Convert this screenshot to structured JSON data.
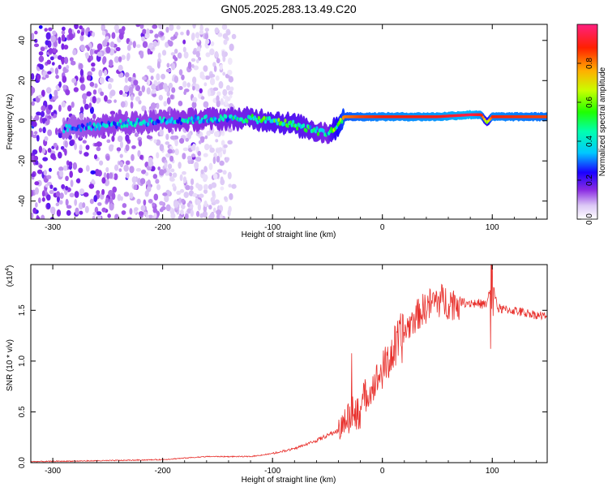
{
  "title": "GN05.2025.283.13.49.C20",
  "chart_data": [
    {
      "type": "heatmap",
      "panel": "spectrogram",
      "xlabel": "Height of straight line (km)",
      "ylabel": "Frequency (Hz)",
      "xlim": [
        -320,
        150
      ],
      "ylim": [
        -49,
        48
      ],
      "xticks": [
        -300,
        -200,
        -100,
        0,
        100
      ],
      "xtick_labels": [
        "-300",
        "-200",
        "-100",
        "0",
        "100"
      ],
      "yticks": [
        -40,
        -20,
        0,
        20,
        40
      ],
      "ytick_labels": [
        "-40",
        "-20",
        "0",
        "20",
        "40"
      ],
      "colorbar": {
        "label": "Normalized spectral amplitude",
        "range": [
          0,
          1
        ],
        "ticks": [
          0.0,
          0.2,
          0.4,
          0.6,
          0.8
        ],
        "tick_labels": [
          "0.0",
          "0.2",
          "0.4",
          "0.6",
          "0.8"
        ]
      },
      "ridge": {
        "description": "main signal ridge frequency vs height",
        "x": [
          -290,
          -250,
          -200,
          -150,
          -120,
          -100,
          -80,
          -60,
          -50,
          -45,
          -40,
          -35,
          -20,
          0,
          50,
          80,
          90,
          95,
          100,
          150
        ],
        "freq": [
          -4,
          -2,
          0,
          1,
          1,
          0,
          -2,
          -5,
          -6,
          -5,
          -2,
          2,
          2,
          2,
          2,
          3,
          3,
          -1,
          2,
          2
        ],
        "amplitude": [
          0.35,
          0.4,
          0.4,
          0.45,
          0.5,
          0.55,
          0.55,
          0.5,
          0.45,
          0.6,
          0.7,
          0.8,
          0.85,
          0.88,
          0.9,
          0.95,
          0.9,
          0.6,
          0.88,
          0.85
        ]
      },
      "noise_extent": {
        "x_from": -320,
        "x_to": -135,
        "amplitude": 0.2
      }
    },
    {
      "type": "line",
      "panel": "snr",
      "xlabel": "Height of straight line (km)",
      "ylabel": "SNR (10 * v/v)",
      "y_multiplier": "(x10",
      "y_multiplier_exponent": "4",
      "y_multiplier_close": ")",
      "xlim": [
        -320,
        150
      ],
      "ylim": [
        0,
        1.95
      ],
      "xticks": [
        -300,
        -200,
        -100,
        0,
        100
      ],
      "xtick_labels": [
        "-300",
        "-200",
        "-100",
        "0",
        "100"
      ],
      "yticks": [
        0.0,
        0.5,
        1.0,
        1.5
      ],
      "ytick_labels": [
        "0.0",
        "0.5",
        "1.0",
        "1.5"
      ],
      "color": "#e8302c",
      "series": [
        {
          "name": "SNR",
          "x": [
            -320,
            -250,
            -200,
            -160,
            -120,
            -100,
            -80,
            -60,
            -40,
            -30,
            -20,
            -10,
            0,
            10,
            20,
            30,
            40,
            50,
            60,
            80,
            95,
            100,
            105,
            120,
            150
          ],
          "values": [
            0.01,
            0.02,
            0.03,
            0.06,
            0.06,
            0.09,
            0.14,
            0.22,
            0.32,
            0.48,
            0.55,
            0.75,
            0.92,
            1.12,
            1.3,
            1.45,
            1.55,
            1.62,
            1.6,
            1.58,
            1.56,
            1.82,
            1.52,
            1.5,
            1.44
          ]
        }
      ]
    }
  ]
}
